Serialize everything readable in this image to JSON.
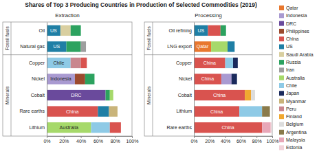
{
  "chart_data": [
    {
      "type": "bar",
      "orientation": "horizontal",
      "stacked": true,
      "title": "Shares of Top 3 Producing Countries in Production of Selected Commodities (2019)",
      "subtitle": "Extraction",
      "categories": [
        "Oil",
        "Natural gas",
        "Copper",
        "Nickel",
        "Cobalt",
        "Rare earths",
        "Lithium"
      ],
      "groups": [
        "Fossil fuels",
        "Fossil fuels",
        "Minerals",
        "Minerals",
        "Minerals",
        "Minerals",
        "Minerals"
      ],
      "xlim": [
        0,
        100
      ],
      "xticks": [
        {
          "value": 0,
          "label": "0%"
        },
        {
          "value": 20,
          "label": "20%"
        },
        {
          "value": 40,
          "label": "40%"
        },
        {
          "value": 60,
          "label": "60%"
        },
        {
          "value": 80,
          "label": "80%"
        },
        {
          "value": 100,
          "label": "100%"
        }
      ],
      "series": [
        {
          "name": "Qatar",
          "color": "#e8772e",
          "values": [
            null,
            null,
            null,
            null,
            null,
            null,
            null
          ]
        },
        {
          "name": "Indonesia",
          "color": "#a99ad1",
          "values": [
            null,
            null,
            null,
            33,
            null,
            null,
            null
          ]
        },
        {
          "name": "DRC",
          "color": "#6a4a9c",
          "values": [
            null,
            null,
            null,
            null,
            69,
            null,
            null
          ]
        },
        {
          "name": "Philippines",
          "color": "#9c4a2e",
          "values": [
            null,
            null,
            null,
            12,
            null,
            null,
            null
          ]
        },
        {
          "name": "China",
          "color": "#d9534f",
          "values": [
            null,
            null,
            7,
            null,
            null,
            60,
            13
          ]
        },
        {
          "name": "US",
          "color": "#1f7fa5",
          "values": [
            16,
            23,
            null,
            null,
            null,
            13,
            null
          ]
        },
        {
          "name": "Saudi Arabia",
          "color": "#d9cfa0",
          "values": [
            12,
            null,
            null,
            null,
            null,
            null,
            null
          ]
        },
        {
          "name": "Russia",
          "color": "#2ca25f",
          "values": [
            12,
            17,
            null,
            11,
            5,
            null,
            null
          ]
        },
        {
          "name": "Iran",
          "color": "#9e9e9e",
          "values": [
            null,
            6,
            null,
            null,
            null,
            null,
            null
          ]
        },
        {
          "name": "Australia",
          "color": "#a6d96a",
          "values": [
            null,
            null,
            null,
            null,
            4,
            null,
            52
          ]
        },
        {
          "name": "Chile",
          "color": "#8ecae6",
          "values": [
            null,
            null,
            28,
            null,
            null,
            null,
            22
          ]
        },
        {
          "name": "Japan",
          "color": "#1a2a5c",
          "values": [
            null,
            null,
            null,
            null,
            null,
            null,
            null
          ]
        },
        {
          "name": "Myanmar",
          "color": "#c9b47a",
          "values": [
            null,
            null,
            null,
            null,
            null,
            10,
            null
          ]
        },
        {
          "name": "Peru",
          "color": "#c9868e",
          "values": [
            null,
            null,
            12,
            null,
            null,
            null,
            null
          ]
        },
        {
          "name": "Finland",
          "color": "#f0a830",
          "values": [
            null,
            null,
            null,
            null,
            null,
            null,
            null
          ]
        },
        {
          "name": "Belgium",
          "color": "#dcdcdc",
          "values": [
            null,
            null,
            null,
            null,
            null,
            null,
            null
          ]
        },
        {
          "name": "Argentina",
          "color": "#8a7a4a",
          "values": [
            null,
            null,
            null,
            null,
            null,
            null,
            null
          ]
        },
        {
          "name": "Malaysia",
          "color": "#e8a7b8",
          "values": [
            null,
            null,
            null,
            null,
            null,
            null,
            null
          ]
        },
        {
          "name": "Estonia",
          "color": "#f2d3da",
          "values": [
            null,
            null,
            null,
            null,
            null,
            null,
            null
          ]
        }
      ]
    },
    {
      "type": "bar",
      "orientation": "horizontal",
      "stacked": true,
      "legend": "right",
      "subtitle": "Processing",
      "categories": [
        "Oil refining",
        "LNG export",
        "Copper",
        "Nickel",
        "Cobalt",
        "Lithium",
        "Rare earths"
      ],
      "groups": [
        "Fossil fuels",
        "Fossil fuels",
        "Minerals",
        "Minerals",
        "Minerals",
        "Minerals",
        "Minerals"
      ],
      "xlim": [
        0,
        100
      ],
      "xticks": [
        {
          "value": 0,
          "label": "0%"
        },
        {
          "value": 20,
          "label": "20%"
        },
        {
          "value": 40,
          "label": "40%"
        },
        {
          "value": 60,
          "label": "60%"
        },
        {
          "value": 80,
          "label": "80%"
        },
        {
          "value": 100,
          "label": "100%"
        }
      ],
      "series": [
        {
          "name": "Qatar",
          "color": "#e8772e",
          "values": [
            null,
            22,
            null,
            null,
            null,
            null,
            null
          ]
        },
        {
          "name": "Indonesia",
          "color": "#a99ad1",
          "values": [
            null,
            null,
            null,
            13,
            null,
            null,
            null
          ]
        },
        {
          "name": "DRC",
          "color": "#6a4a9c",
          "values": [
            null,
            null,
            null,
            null,
            null,
            null,
            null
          ]
        },
        {
          "name": "Philippines",
          "color": "#9c4a2e",
          "values": [
            null,
            null,
            null,
            null,
            null,
            null,
            null
          ]
        },
        {
          "name": "China",
          "color": "#d9534f",
          "values": [
            16,
            null,
            40,
            35,
            65,
            58,
            87
          ]
        },
        {
          "name": "US",
          "color": "#1f7fa5",
          "values": [
            18,
            9,
            null,
            null,
            null,
            null,
            null
          ]
        },
        {
          "name": "Saudi Arabia",
          "color": "#d9cfa0",
          "values": [
            null,
            null,
            null,
            null,
            null,
            null,
            null
          ]
        },
        {
          "name": "Russia",
          "color": "#2ca25f",
          "values": [
            7,
            null,
            null,
            null,
            null,
            null,
            null
          ]
        },
        {
          "name": "Iran",
          "color": "#9e9e9e",
          "values": [
            null,
            null,
            null,
            null,
            null,
            null,
            null
          ]
        },
        {
          "name": "Australia",
          "color": "#a6d96a",
          "values": [
            null,
            21,
            null,
            null,
            null,
            null,
            null
          ]
        },
        {
          "name": "Chile",
          "color": "#8ecae6",
          "values": [
            null,
            null,
            10,
            null,
            null,
            29,
            null
          ]
        },
        {
          "name": "Japan",
          "color": "#1a2a5c",
          "values": [
            null,
            null,
            6,
            7,
            null,
            null,
            null
          ]
        },
        {
          "name": "Myanmar",
          "color": "#c9b47a",
          "values": [
            null,
            null,
            null,
            null,
            null,
            null,
            null
          ]
        },
        {
          "name": "Peru",
          "color": "#c9868e",
          "values": [
            null,
            null,
            null,
            null,
            null,
            null,
            null
          ]
        },
        {
          "name": "Finland",
          "color": "#f0a830",
          "values": [
            null,
            null,
            null,
            null,
            8,
            null,
            null
          ]
        },
        {
          "name": "Belgium",
          "color": "#dcdcdc",
          "values": [
            null,
            null,
            null,
            null,
            5,
            null,
            null
          ]
        },
        {
          "name": "Argentina",
          "color": "#8a7a4a",
          "values": [
            null,
            null,
            null,
            null,
            null,
            10,
            null
          ]
        },
        {
          "name": "Malaysia",
          "color": "#e8a7b8",
          "values": [
            null,
            null,
            null,
            null,
            null,
            null,
            11
          ]
        },
        {
          "name": "Estonia",
          "color": "#f2d3da",
          "values": [
            null,
            null,
            null,
            null,
            null,
            null,
            1
          ]
        }
      ]
    }
  ]
}
